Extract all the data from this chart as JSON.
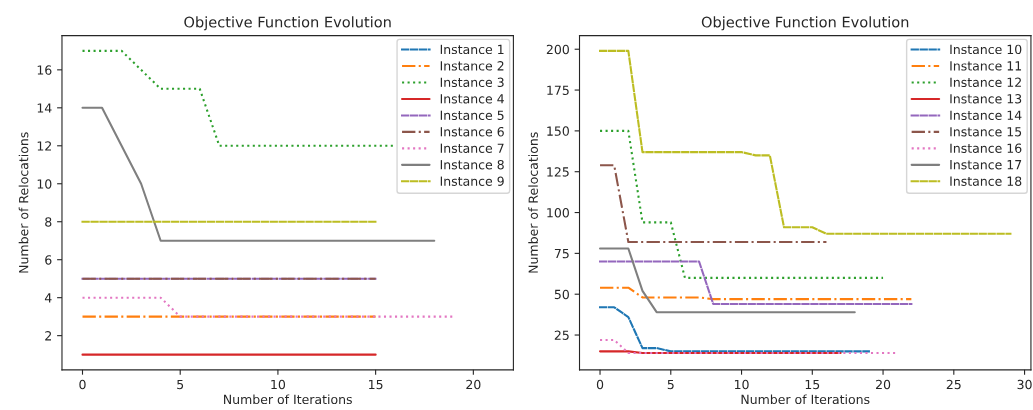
{
  "chart_data": [
    {
      "type": "line",
      "title": "Objective Function Evolution",
      "xlabel": "Number of Iterations",
      "ylabel": "Number of Relocations",
      "xlim": [
        -1.05,
        22.05
      ],
      "xticks": [
        0,
        5,
        10,
        15,
        20
      ],
      "ylim": [
        0.2,
        17.8
      ],
      "yticks": [
        2,
        4,
        6,
        8,
        10,
        12,
        14,
        16
      ],
      "grid": false,
      "legend": "top right",
      "marker": "none",
      "series": [
        {
          "name": "Instance 1",
          "color": "#1f77b4",
          "line_style": "dashed",
          "values": [
            null,
            null,
            null,
            null,
            null,
            null,
            null,
            null,
            null,
            null,
            null,
            null,
            null,
            null,
            null,
            null
          ]
        },
        {
          "name": "Instance 2",
          "color": "#ff7f0e",
          "line_style": "dashdot",
          "x": [
            0,
            1,
            2,
            3,
            4,
            5,
            6,
            7,
            8,
            9,
            10,
            11,
            12,
            13,
            14,
            15
          ],
          "values": [
            3,
            3,
            3,
            3,
            3,
            3,
            3,
            3,
            3,
            3,
            3,
            3,
            3,
            3,
            3,
            3
          ]
        },
        {
          "name": "Instance 3",
          "color": "#2ca02c",
          "line_style": "dotted",
          "x": [
            0,
            1,
            2,
            3,
            4,
            5,
            6,
            7,
            8,
            9,
            10,
            11,
            12,
            13,
            14,
            15,
            16
          ],
          "values": [
            17,
            17,
            17,
            16,
            15,
            15,
            15,
            12,
            12,
            12,
            12,
            12,
            12,
            12,
            12,
            12,
            12
          ]
        },
        {
          "name": "Instance 4",
          "color": "#d62728",
          "line_style": "solid",
          "x": [
            0,
            1,
            2,
            3,
            4,
            5,
            6,
            7,
            8,
            9,
            10,
            11,
            12,
            13,
            14,
            15
          ],
          "values": [
            1,
            1,
            1,
            1,
            1,
            1,
            1,
            1,
            1,
            1,
            1,
            1,
            1,
            1,
            1,
            1
          ]
        },
        {
          "name": "Instance 5",
          "color": "#9467bd",
          "line_style": "dashed",
          "x": [
            0,
            1,
            2,
            3,
            4,
            5,
            6,
            7,
            8,
            9,
            10,
            11,
            12,
            13,
            14,
            15
          ],
          "values": [
            5,
            5,
            5,
            5,
            5,
            5,
            5,
            5,
            5,
            5,
            5,
            5,
            5,
            5,
            5,
            5
          ]
        },
        {
          "name": "Instance 6",
          "color": "#8c564b",
          "line_style": "dashdot",
          "x": [
            0,
            1,
            2,
            3,
            4,
            5,
            6,
            7,
            8,
            9,
            10,
            11,
            12,
            13,
            14,
            15
          ],
          "values": [
            5,
            5,
            5,
            5,
            5,
            5,
            5,
            5,
            5,
            5,
            5,
            5,
            5,
            5,
            5,
            5
          ]
        },
        {
          "name": "Instance 7",
          "color": "#e377c2",
          "line_style": "dotted",
          "x": [
            0,
            1,
            2,
            3,
            4,
            5,
            6,
            7,
            8,
            9,
            10,
            11,
            12,
            13,
            14,
            15,
            16,
            17,
            18,
            19
          ],
          "values": [
            4,
            4,
            4,
            4,
            4,
            3,
            3,
            3,
            3,
            3,
            3,
            3,
            3,
            3,
            3,
            3,
            3,
            3,
            3,
            3
          ]
        },
        {
          "name": "Instance 8",
          "color": "#7f7f7f",
          "line_style": "solid",
          "x": [
            0,
            1,
            2,
            3,
            4,
            5,
            6,
            7,
            8,
            9,
            10,
            11,
            12,
            13,
            14,
            15,
            16,
            17,
            18
          ],
          "values": [
            14,
            14,
            12,
            10,
            7,
            7,
            7,
            7,
            7,
            7,
            7,
            7,
            7,
            7,
            7,
            7,
            7,
            7,
            7
          ]
        },
        {
          "name": "Instance 9",
          "color": "#bcbd22",
          "line_style": "dashed",
          "x": [
            0,
            1,
            2,
            3,
            4,
            5,
            6,
            7,
            8,
            9,
            10,
            11,
            12,
            13,
            14,
            15
          ],
          "values": [
            8,
            8,
            8,
            8,
            8,
            8,
            8,
            8,
            8,
            8,
            8,
            8,
            8,
            8,
            8,
            8
          ]
        }
      ]
    },
    {
      "type": "line",
      "title": "Objective Function Evolution",
      "xlabel": "Number of Iterations",
      "ylabel": "Number of Relocations",
      "xlim": [
        -1.45,
        30.45
      ],
      "xticks": [
        0,
        5,
        10,
        15,
        20,
        25,
        30
      ],
      "ylim": [
        3.7,
        208.3
      ],
      "yticks": [
        25,
        50,
        75,
        100,
        125,
        150,
        175,
        200
      ],
      "grid": false,
      "legend": "top right",
      "marker": "none",
      "series": [
        {
          "name": "Instance 10",
          "color": "#1f77b4",
          "line_style": "dashed",
          "x": [
            0,
            1,
            2,
            3,
            4,
            5,
            6,
            7,
            8,
            9,
            10,
            11,
            12,
            13,
            14,
            15,
            16,
            17,
            18,
            19
          ],
          "values": [
            42,
            42,
            36,
            17,
            17,
            15,
            15,
            15,
            15,
            15,
            15,
            15,
            15,
            15,
            15,
            15,
            15,
            15,
            15,
            15
          ]
        },
        {
          "name": "Instance 11",
          "color": "#ff7f0e",
          "line_style": "dashdot",
          "x": [
            0,
            1,
            2,
            3,
            4,
            5,
            6,
            7,
            8,
            9,
            10,
            11,
            12,
            13,
            14,
            15,
            16,
            17,
            18,
            19,
            20,
            21,
            22
          ],
          "values": [
            54,
            54,
            54,
            48,
            48,
            48,
            48,
            48,
            47,
            47,
            47,
            47,
            47,
            47,
            47,
            47,
            47,
            47,
            47,
            47,
            47,
            47,
            47
          ]
        },
        {
          "name": "Instance 12",
          "color": "#2ca02c",
          "line_style": "dotted",
          "x": [
            0,
            1,
            2,
            3,
            4,
            5,
            6,
            7,
            8,
            9,
            10,
            11,
            12,
            13,
            14,
            15,
            16,
            17,
            18,
            19,
            20
          ],
          "values": [
            150,
            150,
            150,
            94,
            94,
            94,
            60,
            60,
            60,
            60,
            60,
            60,
            60,
            60,
            60,
            60,
            60,
            60,
            60,
            60,
            60
          ]
        },
        {
          "name": "Instance 13",
          "color": "#d62728",
          "line_style": "solid",
          "x": [
            0,
            1,
            2,
            3,
            4,
            5,
            6,
            7,
            8,
            9,
            10,
            11,
            12,
            13,
            14,
            15,
            16,
            17
          ],
          "values": [
            15,
            15,
            15,
            14,
            14,
            14,
            14,
            14,
            14,
            14,
            14,
            14,
            14,
            14,
            14,
            14,
            14,
            14
          ]
        },
        {
          "name": "Instance 14",
          "color": "#9467bd",
          "line_style": "dashed",
          "x": [
            0,
            1,
            2,
            3,
            4,
            5,
            6,
            7,
            8,
            9,
            10,
            11,
            12,
            13,
            14,
            15,
            16,
            17,
            18,
            19,
            20,
            21,
            22
          ],
          "values": [
            70,
            70,
            70,
            70,
            70,
            70,
            70,
            70,
            44,
            44,
            44,
            44,
            44,
            44,
            44,
            44,
            44,
            44,
            44,
            44,
            44,
            44,
            44
          ]
        },
        {
          "name": "Instance 15",
          "color": "#8c564b",
          "line_style": "dashdot",
          "x": [
            0,
            1,
            2,
            3,
            4,
            5,
            6,
            7,
            8,
            9,
            10,
            11,
            12,
            13,
            14,
            15,
            16
          ],
          "values": [
            129,
            129,
            82,
            82,
            82,
            82,
            82,
            82,
            82,
            82,
            82,
            82,
            82,
            82,
            82,
            82,
            82
          ]
        },
        {
          "name": "Instance 16",
          "color": "#e377c2",
          "line_style": "dotted",
          "x": [
            0,
            1,
            2,
            3,
            4,
            5,
            6,
            7,
            8,
            9,
            10,
            11,
            12,
            13,
            14,
            15,
            16,
            17,
            18,
            19,
            20,
            21
          ],
          "values": [
            22,
            22,
            14,
            14,
            14,
            14,
            14,
            14,
            14,
            14,
            14,
            14,
            14,
            14,
            14,
            14,
            14,
            14,
            14,
            14,
            14,
            14
          ]
        },
        {
          "name": "Instance 17",
          "color": "#7f7f7f",
          "line_style": "solid",
          "x": [
            0,
            1,
            2,
            3,
            4,
            5,
            6,
            7,
            8,
            9,
            10,
            11,
            12,
            13,
            14,
            15,
            16,
            17,
            18
          ],
          "values": [
            78,
            78,
            78,
            52,
            39,
            39,
            39,
            39,
            39,
            39,
            39,
            39,
            39,
            39,
            39,
            39,
            39,
            39,
            39
          ]
        },
        {
          "name": "Instance 18",
          "color": "#bcbd22",
          "line_style": "dashed",
          "x": [
            0,
            1,
            2,
            3,
            4,
            5,
            6,
            7,
            8,
            9,
            10,
            11,
            12,
            13,
            14,
            15,
            16,
            17,
            18,
            19,
            20,
            21,
            22,
            23,
            24,
            25,
            26,
            27,
            28,
            29
          ],
          "values": [
            199,
            199,
            199,
            137,
            137,
            137,
            137,
            137,
            137,
            137,
            137,
            135,
            135,
            91,
            91,
            91,
            87,
            87,
            87,
            87,
            87,
            87,
            87,
            87,
            87,
            87,
            87,
            87,
            87,
            87
          ]
        }
      ]
    }
  ]
}
